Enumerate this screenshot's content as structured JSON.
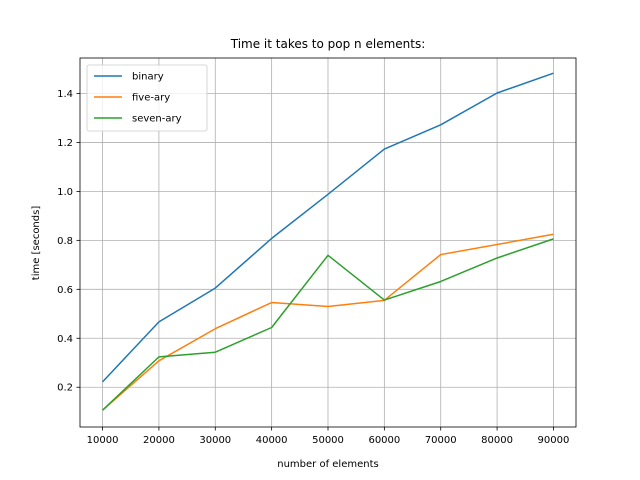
{
  "chart_data": {
    "type": "line",
    "title": "Time it takes to pop n elements:",
    "xlabel": "number of elements",
    "ylabel": "time [seconds]",
    "x": [
      10000,
      20000,
      30000,
      40000,
      50000,
      60000,
      70000,
      80000,
      90000
    ],
    "xlim": [
      6000,
      94000
    ],
    "ylim": [
      0.0375,
      1.545
    ],
    "xticks": [
      10000,
      20000,
      30000,
      40000,
      50000,
      60000,
      70000,
      80000,
      90000
    ],
    "yticks": [
      0.2,
      0.4,
      0.6,
      0.8,
      1.0,
      1.2,
      1.4
    ],
    "ytick_labels": [
      "0.2",
      "0.4",
      "0.6",
      "0.8",
      "1.0",
      "1.2",
      "1.4"
    ],
    "grid": true,
    "legend_position": "top-left",
    "series": [
      {
        "name": "binary",
        "color": "#1f77b4",
        "values": [
          0.222,
          0.467,
          0.605,
          0.808,
          0.988,
          1.173,
          1.272,
          1.402,
          1.483
        ]
      },
      {
        "name": "five-ary",
        "color": "#ff7f0e",
        "values": [
          0.106,
          0.308,
          0.439,
          0.546,
          0.53,
          0.555,
          0.742,
          0.783,
          0.825
        ]
      },
      {
        "name": "seven-ary",
        "color": "#2ca02c",
        "values": [
          0.106,
          0.324,
          0.343,
          0.444,
          0.739,
          0.556,
          0.632,
          0.728,
          0.806
        ]
      }
    ]
  }
}
